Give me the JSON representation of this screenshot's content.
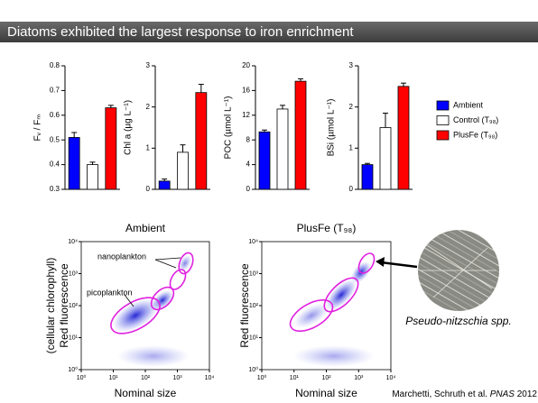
{
  "header": {
    "title": "Diatoms exhibited the largest response to iron enrichment"
  },
  "legend": [
    {
      "name": "Ambient",
      "color": "#0000ff"
    },
    {
      "name": "Control (T₉₈)",
      "color": "#ffffff"
    },
    {
      "name": "PlusFe (T₉₈)",
      "color": "#ff0000"
    }
  ],
  "chart_data": [
    {
      "type": "bar",
      "ylabel": "Fᵥ / Fₘ",
      "values": [
        0.51,
        0.4,
        0.63
      ],
      "errors": [
        0.02,
        0.01,
        0.01
      ],
      "ylim": [
        0.3,
        0.8
      ],
      "yticks": [
        0.3,
        0.4,
        0.5,
        0.6,
        0.7,
        0.8
      ]
    },
    {
      "type": "bar",
      "ylabel": "Chl a (µg L⁻¹)",
      "values": [
        0.2,
        0.9,
        2.35
      ],
      "errors": [
        0.05,
        0.18,
        0.2
      ],
      "ylim": [
        0,
        3
      ],
      "yticks": [
        0,
        1,
        2,
        3
      ]
    },
    {
      "type": "bar",
      "ylabel": "POC (µmol L⁻¹)",
      "values": [
        9.3,
        13,
        17.5
      ],
      "errors": [
        0.3,
        0.6,
        0.4
      ],
      "ylim": [
        0,
        20
      ],
      "yticks": [
        0,
        4,
        8,
        12,
        16,
        20
      ]
    },
    {
      "type": "bar",
      "ylabel": "BSi (µmol L⁻¹)",
      "values": [
        0.6,
        1.5,
        2.5
      ],
      "errors": [
        0.03,
        0.35,
        0.08
      ],
      "ylim": [
        0,
        3
      ],
      "yticks": [
        0,
        1,
        2,
        3
      ]
    }
  ],
  "cytometry_axes": {
    "log": true,
    "xlim": [
      1,
      10000
    ],
    "ylim": [
      1,
      10000
    ],
    "xticks": [
      {
        "value": 1,
        "label": "10⁰"
      },
      {
        "value": 10,
        "label": "10¹"
      },
      {
        "value": 100,
        "label": "10²"
      },
      {
        "value": 1000,
        "label": "10³"
      },
      {
        "value": 10000,
        "label": "10⁴"
      }
    ],
    "yticks": [
      {
        "value": 1,
        "label": "10⁰"
      },
      {
        "value": 10,
        "label": "10¹"
      },
      {
        "value": 100,
        "label": "10²"
      },
      {
        "value": 1000,
        "label": "10³"
      },
      {
        "value": 10000,
        "label": "10⁴"
      }
    ]
  },
  "cytometry": [
    {
      "title": "Ambient",
      "ylabel": [
        "(cellular chlorophyll)",
        "Red fluorescence"
      ],
      "xlabel": "Nominal size",
      "annotations": [
        "nanoplankton",
        "picoplankton"
      ]
    },
    {
      "title": "PlusFe (T₉₈)",
      "ylabel": [
        "Red fluorescence"
      ],
      "xlabel": "Nominal size"
    }
  ],
  "image_caption": "Pseudo-nitzschia spp.",
  "citation": [
    "Marchetti, Schruth et al. ",
    "PNAS",
    " 2012"
  ]
}
